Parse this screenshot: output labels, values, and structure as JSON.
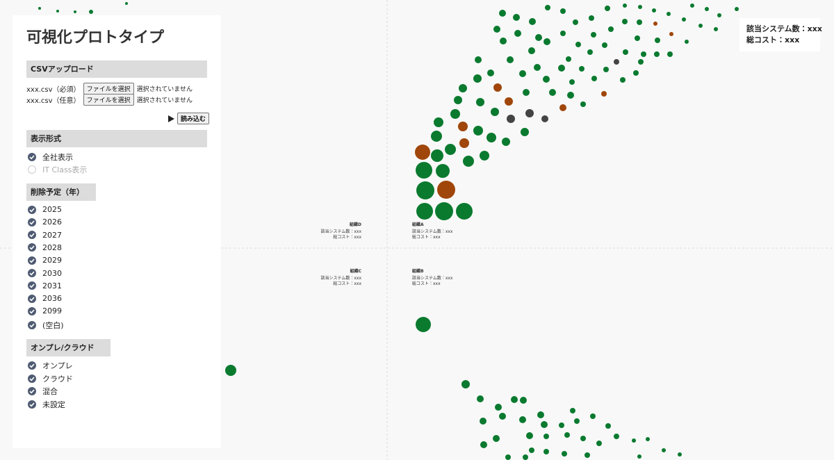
{
  "header": {
    "title": "可視化プロトタイプ"
  },
  "summary": {
    "system_count": "該当システム数：xxx",
    "total_cost": "総コスト：xxx"
  },
  "upload": {
    "heading": "CSVアップロード",
    "files": [
      {
        "label": "xxx.csv（必須）",
        "button": "ファイルを選択",
        "status": "選択されていません"
      },
      {
        "label": "xxx.csv（任意）",
        "button": "ファイルを選択",
        "status": "選択されていません"
      }
    ],
    "load_button": "読み込む"
  },
  "display_mode": {
    "heading": "表示形式",
    "options": [
      {
        "label": "全社表示",
        "selected": true
      },
      {
        "label": "IT Class表示",
        "selected": false
      }
    ]
  },
  "deletion_year": {
    "heading": "削除予定（年）",
    "options": [
      "2025",
      "2026",
      "2027",
      "2028",
      "2029",
      "2030",
      "2031",
      "2036",
      "2099",
      "(空白)"
    ]
  },
  "hosting": {
    "heading": "オンプレ/クラウド",
    "options": [
      "オンプレ",
      "クラウド",
      "混合",
      "未設定"
    ]
  },
  "quadrants": [
    {
      "org": "組織D",
      "systems": "該当システム数：xxx",
      "cost": "総コスト：xxx"
    },
    {
      "org": "組織A",
      "systems": "該当システム数：xxx",
      "cost": "総コスト：xxx"
    },
    {
      "org": "組織C",
      "systems": "該当システム数：xxx",
      "cost": "総コスト：xxx"
    },
    {
      "org": "組織B",
      "systems": "該当システム数：xxx",
      "cost": "総コスト：xxx"
    }
  ]
}
